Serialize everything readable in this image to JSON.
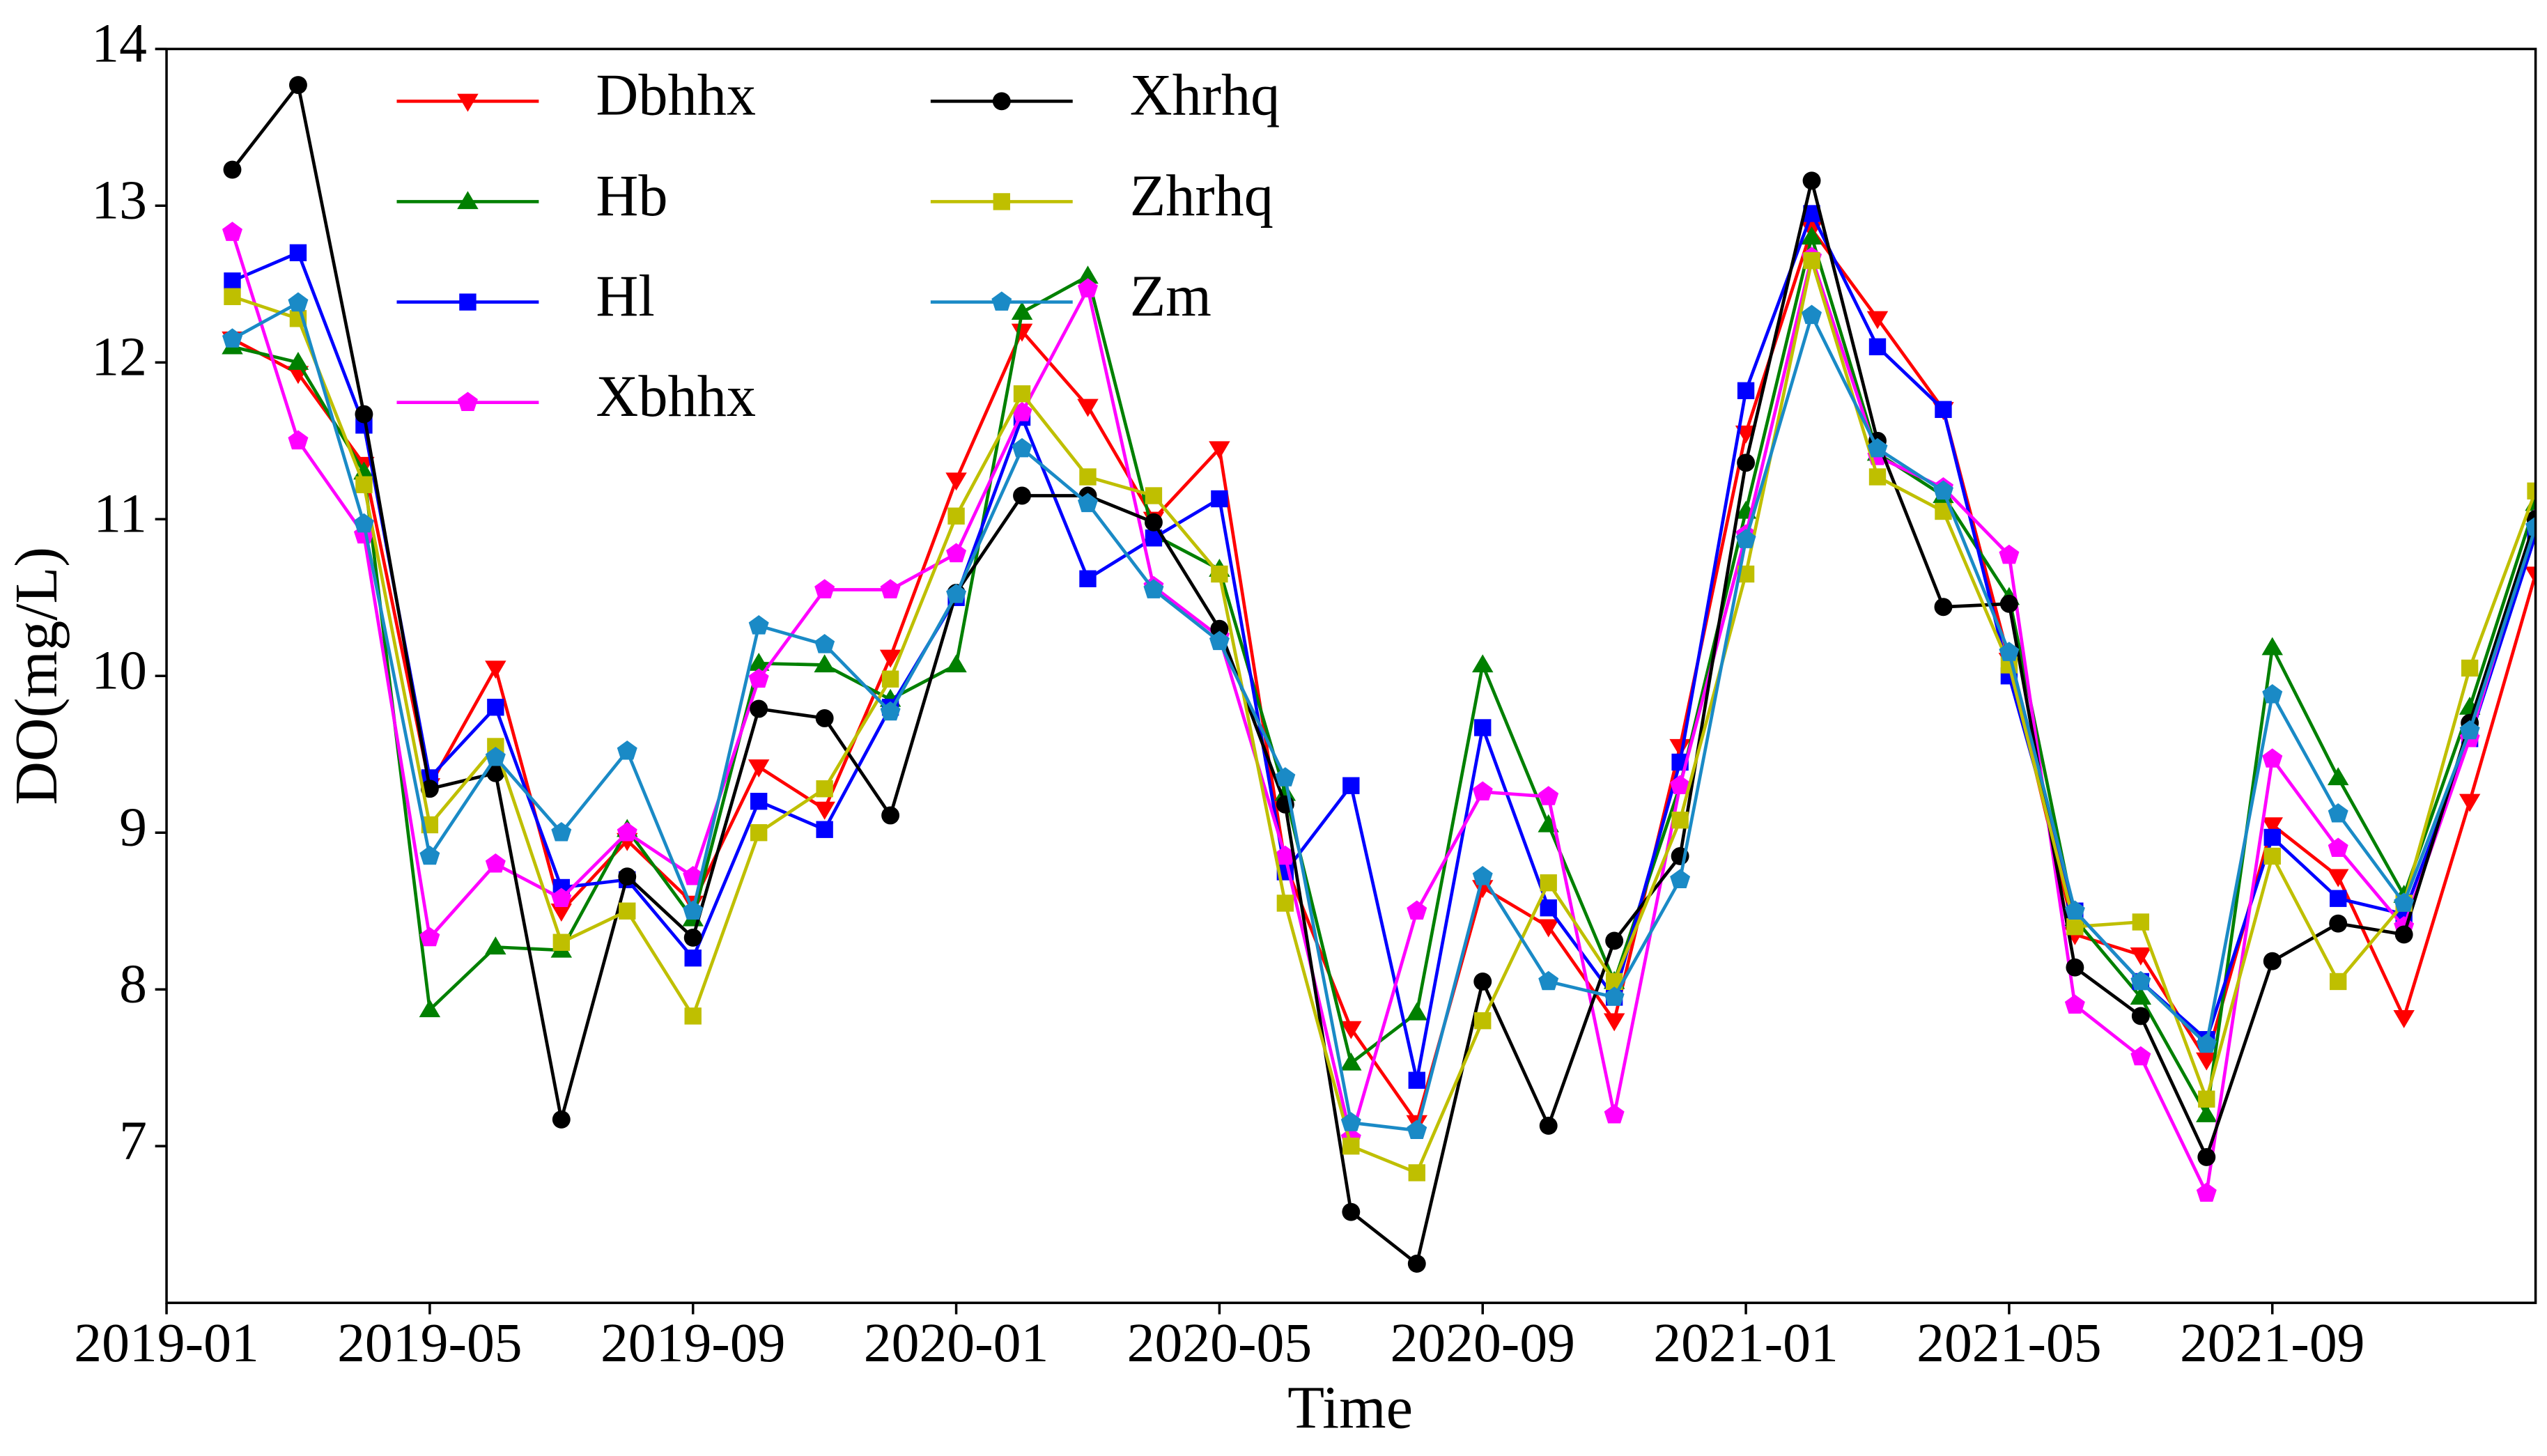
{
  "chart_data": {
    "type": "line",
    "x_label": "Time",
    "y_label": "DO(mg/L)",
    "x": [
      "2019-02",
      "2019-03",
      "2019-04",
      "2019-05",
      "2019-06",
      "2019-07",
      "2019-08",
      "2019-09",
      "2019-10",
      "2019-11",
      "2019-12",
      "2020-01",
      "2020-02",
      "2020-03",
      "2020-04",
      "2020-05",
      "2020-06",
      "2020-07",
      "2020-08",
      "2020-09",
      "2020-10",
      "2020-11",
      "2020-12",
      "2021-01",
      "2021-02",
      "2021-03",
      "2021-04",
      "2021-05",
      "2021-06",
      "2021-07",
      "2021-08",
      "2021-09",
      "2021-10",
      "2021-11",
      "2021-12",
      "2022-01"
    ],
    "xlim": [
      "2019-01",
      "2022-01"
    ],
    "xticks": [
      "2019-01",
      "2019-05",
      "2019-09",
      "2020-01",
      "2020-05",
      "2020-09",
      "2021-01",
      "2021-05",
      "2021-09"
    ],
    "ylim": [
      6,
      14
    ],
    "yticks": [
      7,
      8,
      9,
      10,
      11,
      12,
      13,
      14
    ],
    "legend": "upper left",
    "legend_ncol": 2,
    "series": [
      {
        "name": "Dbhhx",
        "color": "#ff0000",
        "marker": "v",
        "values": [
          12.15,
          11.93,
          11.35,
          9.3,
          10.05,
          8.5,
          8.95,
          8.55,
          9.42,
          9.15,
          10.12,
          11.25,
          12.2,
          11.72,
          11.0,
          11.45,
          8.8,
          7.75,
          7.15,
          8.65,
          8.4,
          7.8,
          9.55,
          11.55,
          12.85,
          12.28,
          11.7,
          10.1,
          8.35,
          8.22,
          7.55,
          9.05,
          8.72,
          7.82,
          9.2,
          10.65
        ]
      },
      {
        "name": "Hb",
        "color": "#008000",
        "marker": "^",
        "values": [
          12.1,
          12.0,
          11.3,
          7.87,
          8.27,
          8.25,
          9.02,
          8.45,
          10.08,
          10.07,
          9.85,
          10.07,
          12.32,
          12.55,
          10.9,
          10.68,
          9.25,
          7.53,
          7.85,
          10.07,
          9.05,
          8.05,
          9.3,
          11.05,
          12.8,
          11.42,
          11.15,
          10.5,
          8.45,
          7.95,
          7.2,
          10.18,
          9.35,
          8.6,
          9.8,
          11.1
        ]
      },
      {
        "name": "Hl",
        "color": "#0000ff",
        "marker": "s",
        "values": [
          12.52,
          12.7,
          11.6,
          9.35,
          9.8,
          8.65,
          8.7,
          8.2,
          9.2,
          9.02,
          9.8,
          10.5,
          11.65,
          10.62,
          10.88,
          11.13,
          8.75,
          9.3,
          7.42,
          9.67,
          8.52,
          7.95,
          9.45,
          11.82,
          12.95,
          12.1,
          11.7,
          10.0,
          8.5,
          8.05,
          7.68,
          8.97,
          8.58,
          8.48,
          9.6,
          10.9
        ]
      },
      {
        "name": "Xbhhx",
        "color": "#ff00ff",
        "marker": "p",
        "values": [
          12.83,
          11.5,
          10.9,
          8.33,
          8.8,
          8.58,
          9.0,
          8.72,
          9.98,
          10.55,
          10.55,
          10.78,
          11.68,
          12.47,
          10.57,
          10.25,
          8.85,
          7.05,
          8.5,
          9.26,
          9.23,
          7.2,
          9.3,
          10.9,
          12.67,
          11.4,
          11.2,
          10.77,
          7.9,
          7.57,
          6.7,
          9.47,
          8.9,
          8.4,
          9.6,
          11.0
        ]
      },
      {
        "name": "Xhrhq",
        "color": "#000000",
        "marker": "o",
        "values": [
          13.23,
          13.77,
          11.67,
          9.28,
          9.38,
          7.17,
          8.72,
          8.33,
          9.79,
          9.73,
          9.11,
          10.53,
          11.15,
          11.15,
          10.98,
          10.3,
          9.18,
          6.58,
          6.25,
          8.05,
          7.13,
          8.31,
          8.85,
          11.36,
          13.16,
          11.5,
          10.44,
          10.46,
          8.14,
          7.83,
          6.93,
          8.18,
          8.42,
          8.35,
          9.7,
          11.0
        ]
      },
      {
        "name": "Zhrhq",
        "color": "#bfbf00",
        "marker": "s",
        "values": [
          12.42,
          12.28,
          11.22,
          9.05,
          9.55,
          8.3,
          8.5,
          7.83,
          9.0,
          9.28,
          9.98,
          11.02,
          11.8,
          11.27,
          11.15,
          10.65,
          8.55,
          7.0,
          6.83,
          7.8,
          8.68,
          8.05,
          9.08,
          10.65,
          12.65,
          11.27,
          11.05,
          10.07,
          8.4,
          8.43,
          7.3,
          8.85,
          8.05,
          8.55,
          10.05,
          11.18
        ]
      },
      {
        "name": "Zm",
        "color": "#1a8ac6",
        "marker": "p",
        "values": [
          12.15,
          12.38,
          10.97,
          8.85,
          9.48,
          9.0,
          9.52,
          8.5,
          10.32,
          10.2,
          9.77,
          10.52,
          11.45,
          11.1,
          10.55,
          10.22,
          9.35,
          7.15,
          7.1,
          8.72,
          8.05,
          7.95,
          8.7,
          10.87,
          12.3,
          11.45,
          11.18,
          10.15,
          8.5,
          8.05,
          7.65,
          9.88,
          9.12,
          8.55,
          9.65,
          10.95
        ]
      }
    ]
  }
}
